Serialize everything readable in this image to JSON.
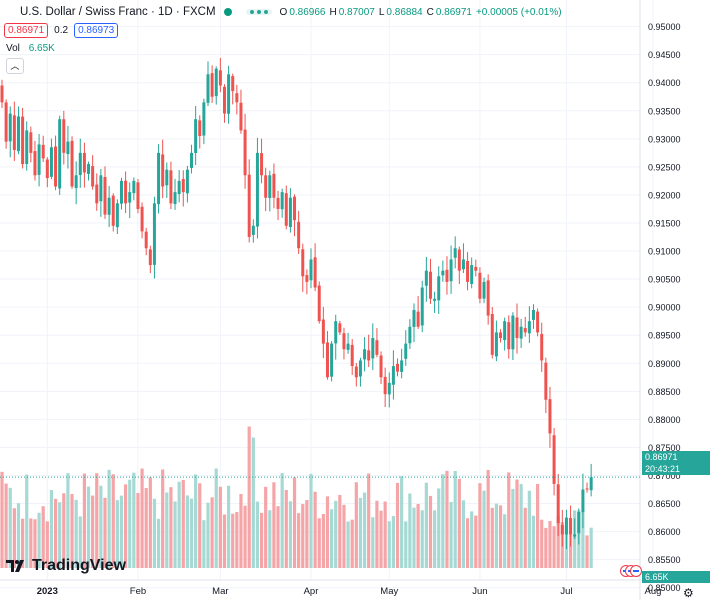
{
  "header": {
    "symbol": "U.S. Dollar / Swiss Franc · 1D · FXCM",
    "ohlc": [
      {
        "k": "O",
        "v": "0.86966"
      },
      {
        "k": "H",
        "v": "0.87007"
      },
      {
        "k": "L",
        "v": "0.86884"
      },
      {
        "k": "C",
        "v": "0.86971"
      }
    ],
    "change": "+0.00005 (+0.01%)",
    "sell_price": "0.86971",
    "spread": "0.2",
    "buy_price": "0.86973",
    "volume_label": "Vol",
    "volume_value": "6.65K",
    "collapse_icon": "chevron-up-icon"
  },
  "price_label": {
    "price": "0.86971",
    "countdown": "20:43:21"
  },
  "volume_label": "6.65K",
  "logo": "TradingView",
  "colors": {
    "up": "#26a69a",
    "down": "#ef5350",
    "volume_up": "#a6d9d3",
    "volume_down": "#f5a5a7"
  },
  "chart_data": {
    "type": "candlestick",
    "title": "U.S. Dollar / Swiss Franc · 1D · FXCM",
    "y_ticks": [
      "0.95000",
      "0.94500",
      "0.94000",
      "0.93500",
      "0.93000",
      "0.92500",
      "0.92000",
      "0.91500",
      "0.91000",
      "0.90500",
      "0.90000",
      "0.89500",
      "0.89000",
      "0.88500",
      "0.88000",
      "0.87500",
      "0.87000",
      "0.86500",
      "0.86000",
      "0.85500",
      "0.85000"
    ],
    "ylim": [
      0.848,
      0.952
    ],
    "x_ticks": [
      {
        "label": "2023",
        "index": 11
      },
      {
        "label": "Feb",
        "index": 33
      },
      {
        "label": "Mar",
        "index": 53
      },
      {
        "label": "Apr",
        "index": 75
      },
      {
        "label": "May",
        "index": 94
      },
      {
        "label": "Jun",
        "index": 116
      },
      {
        "label": "Jul",
        "index": 137
      },
      {
        "label": "Aug",
        "index": 158
      }
    ],
    "grid": true,
    "closes": [
      0.9365,
      0.9295,
      0.9345,
      0.928,
      0.934,
      0.9255,
      0.9315,
      0.9275,
      0.9235,
      0.929,
      0.9265,
      0.923,
      0.9285,
      0.9215,
      0.9335,
      0.9275,
      0.9295,
      0.9215,
      0.9235,
      0.9275,
      0.924,
      0.9255,
      0.9215,
      0.9185,
      0.9235,
      0.9165,
      0.9195,
      0.9145,
      0.9185,
      0.9225,
      0.9185,
      0.9205,
      0.9225,
      0.9175,
      0.9135,
      0.9105,
      0.9075,
      0.9185,
      0.9275,
      0.9215,
      0.9245,
      0.9185,
      0.9205,
      0.9225,
      0.9205,
      0.9245,
      0.9275,
      0.9335,
      0.9305,
      0.9365,
      0.9415,
      0.9375,
      0.9425,
      0.9395,
      0.9345,
      0.9415,
      0.9385,
      0.9365,
      0.9315,
      0.9235,
      0.9125,
      0.9145,
      0.9275,
      0.9235,
      0.9195,
      0.9235,
      0.9195,
      0.9175,
      0.9205,
      0.9145,
      0.9195,
      0.9155,
      0.9105,
      0.9055,
      0.9045,
      0.9085,
      0.9035,
      0.8975,
      0.8935,
      0.8875,
      0.8935,
      0.8975,
      0.8955,
      0.8925,
      0.8935,
      0.8895,
      0.8875,
      0.8905,
      0.8925,
      0.8905,
      0.8945,
      0.8915,
      0.8875,
      0.8845,
      0.8865,
      0.8895,
      0.8885,
      0.8905,
      0.8935,
      0.8965,
      0.8995,
      0.8965,
      0.9035,
      0.9065,
      0.9015,
      0.9015,
      0.9055,
      0.9065,
      0.9045,
      0.9085,
      0.9105,
      0.9065,
      0.9085,
      0.9045,
      0.9075,
      0.9065,
      0.9015,
      0.9045,
      0.8985,
      0.8915,
      0.8955,
      0.8945,
      0.8975,
      0.8925,
      0.8985,
      0.8945,
      0.8965,
      0.8955,
      0.8975,
      0.8995,
      0.8955,
      0.8905,
      0.8835,
      0.8775,
      0.8685,
      0.8615,
      0.8595,
      0.8625,
      0.8595,
      0.8595,
      0.8635,
      0.8675,
      0.8675,
      0.8697
    ],
    "volume_unit": "K",
    "last_volume": 6.65
  }
}
